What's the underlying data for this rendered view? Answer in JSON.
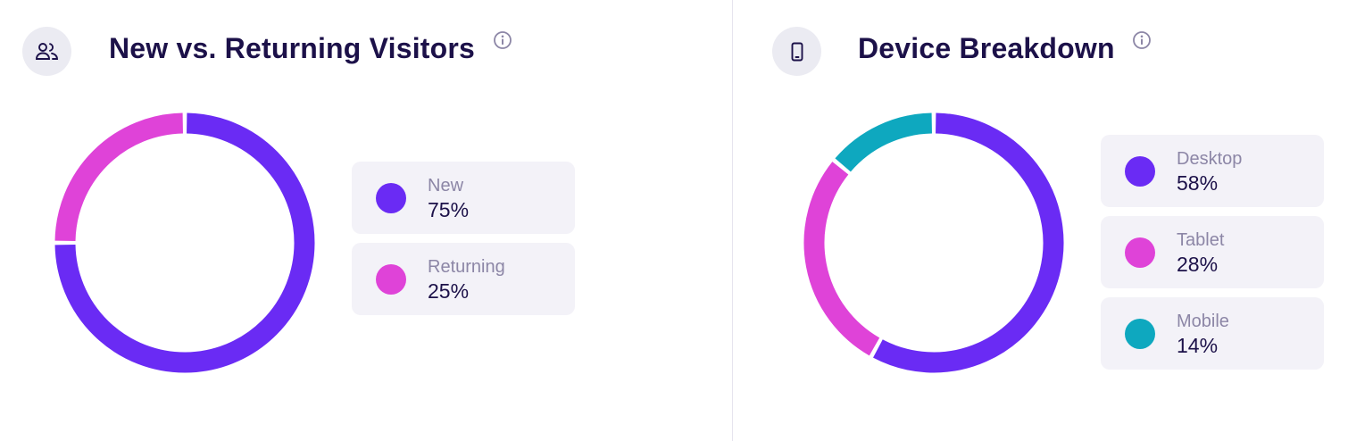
{
  "colors": {
    "violet": "#6a2bf4",
    "magenta": "#df43d8",
    "teal": "#0ea8bf",
    "title": "#1c1149",
    "label": "#8c86a6",
    "card": "#f3f2f8",
    "icon_bg": "#ebebf2"
  },
  "visitors": {
    "title": "New vs. Returning Visitors",
    "icon": "users-icon",
    "info_icon": "info-icon",
    "legend": [
      {
        "label": "New",
        "value": "75%",
        "color": "#6a2bf4"
      },
      {
        "label": "Returning",
        "value": "25%",
        "color": "#df43d8"
      }
    ]
  },
  "devices": {
    "title": "Device Breakdown",
    "icon": "smartphone-icon",
    "info_icon": "info-icon",
    "legend": [
      {
        "label": "Desktop",
        "value": "58%",
        "color": "#6a2bf4"
      },
      {
        "label": "Tablet",
        "value": "28%",
        "color": "#df43d8"
      },
      {
        "label": "Mobile",
        "value": "14%",
        "color": "#0ea8bf"
      }
    ]
  },
  "chart_data": [
    {
      "type": "pie",
      "title": "New vs. Returning Visitors",
      "categories": [
        "New",
        "Returning"
      ],
      "values": [
        75,
        25
      ],
      "colors": [
        "#6a2bf4",
        "#df43d8"
      ],
      "legend": "right"
    },
    {
      "type": "pie",
      "title": "Device Breakdown",
      "categories": [
        "Desktop",
        "Tablet",
        "Mobile"
      ],
      "values": [
        58,
        28,
        14
      ],
      "colors": [
        "#6a2bf4",
        "#df43d8",
        "#0ea8bf"
      ],
      "legend": "right"
    }
  ]
}
